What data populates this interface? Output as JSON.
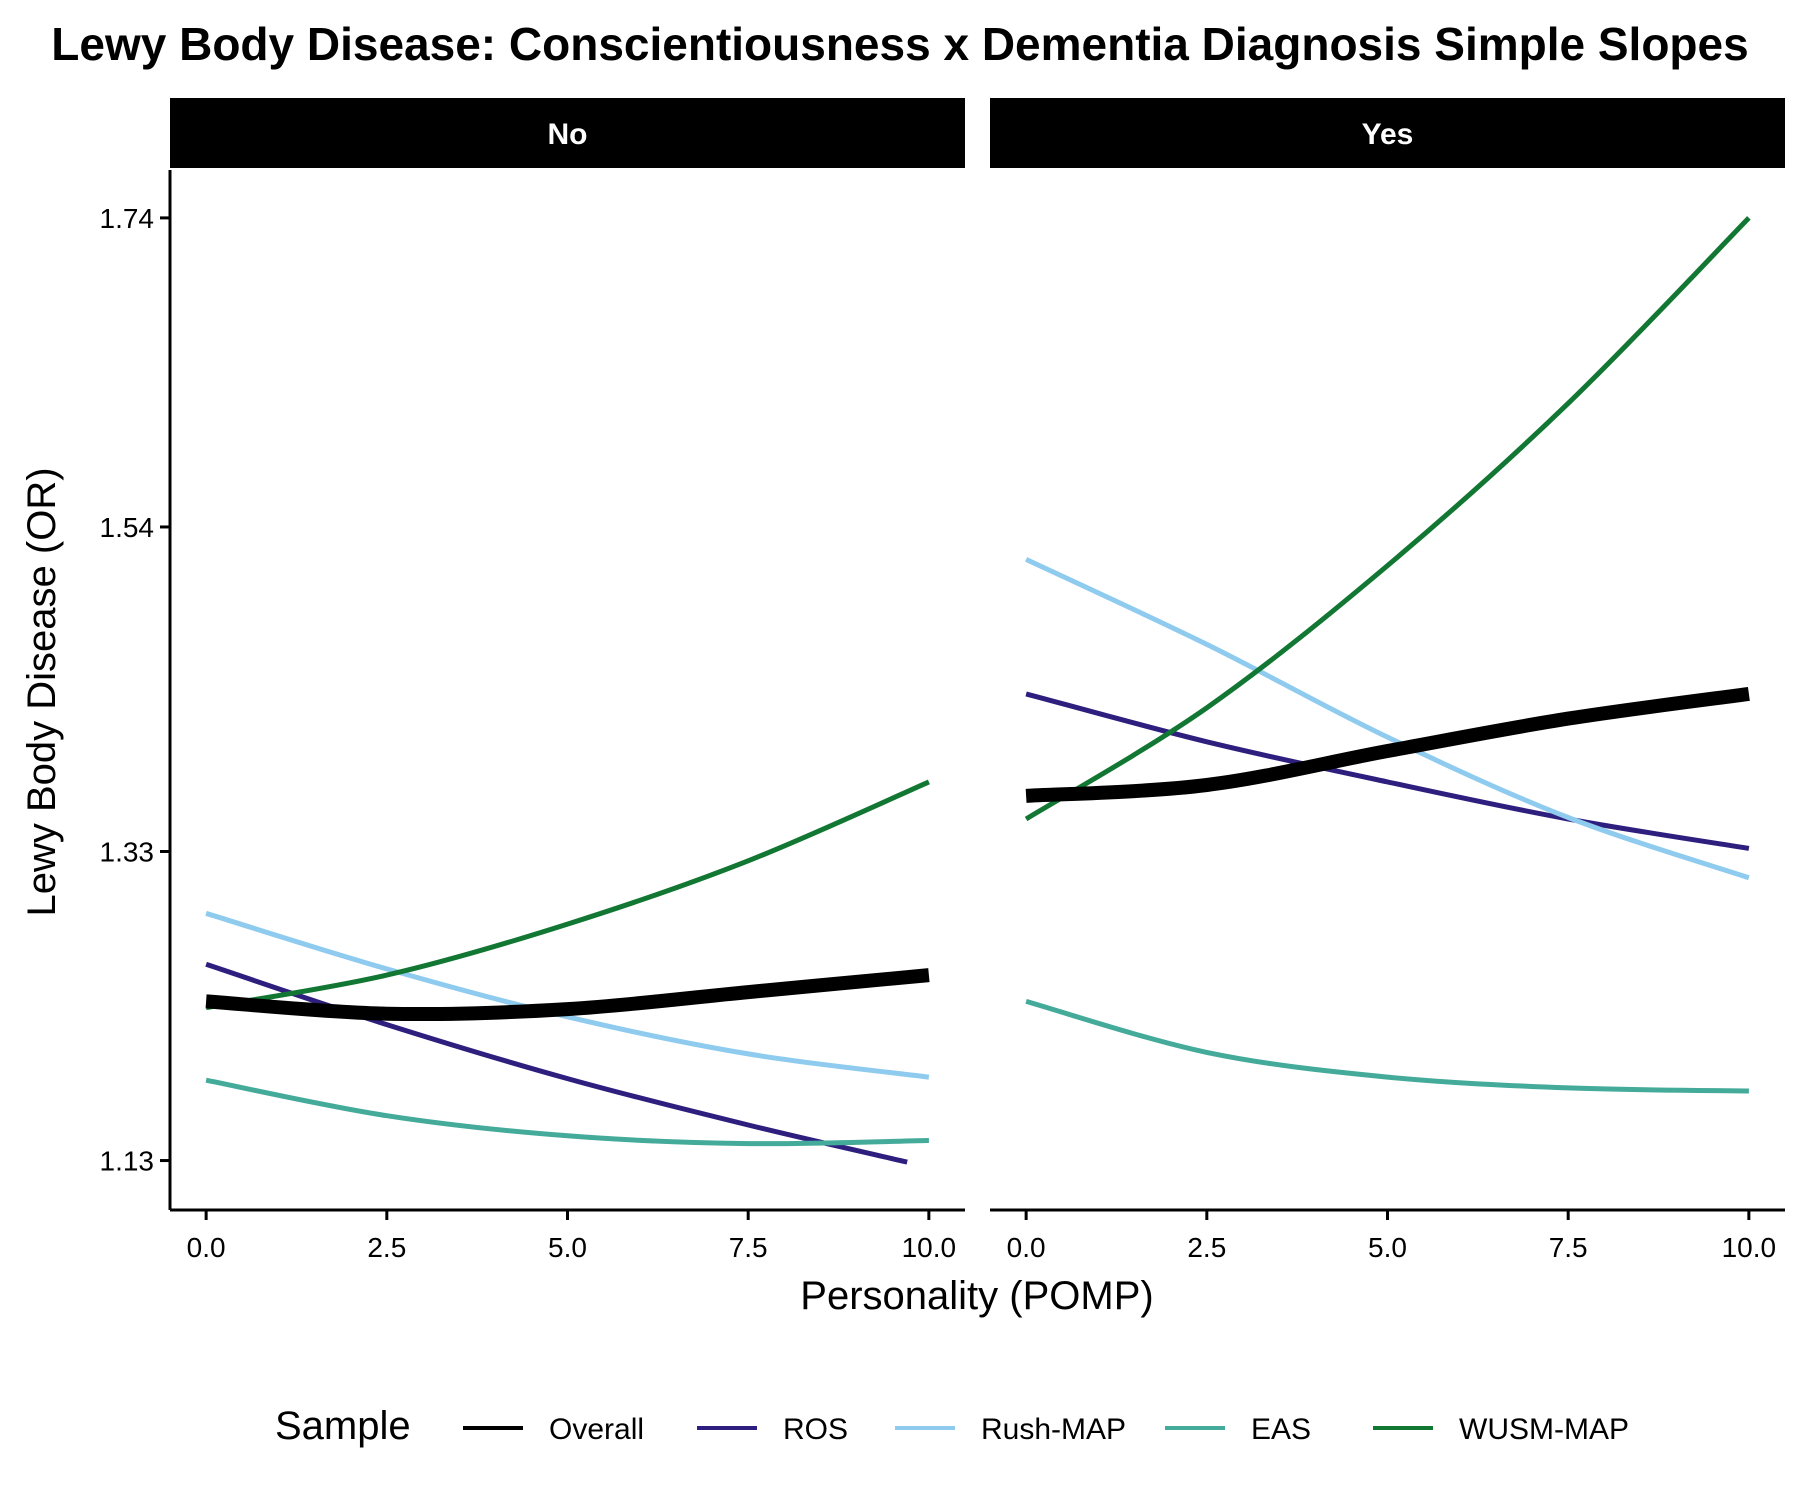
{
  "chart_data": {
    "type": "line",
    "title": "Lewy Body Disease: Conscientiousness x Dementia Diagnosis Simple Slopes",
    "xlabel": "Personality (POMP)",
    "ylabel": "Lewy Body Disease (OR)",
    "xlim": [
      -0.5,
      10.5
    ],
    "ylim": [
      1.098,
      1.771
    ],
    "x_ticks": [
      0,
      2.5,
      5,
      7.5,
      10
    ],
    "x_tick_labels": [
      "0.0",
      "2.5",
      "5.0",
      "7.5",
      "10.0"
    ],
    "y_ticks": [
      1.13,
      1.33,
      1.54,
      1.74
    ],
    "y_tick_labels": [
      "1.13",
      "1.33",
      "1.54",
      "1.74"
    ],
    "grid": false,
    "legend": {
      "title": "Sample",
      "position": "bottom",
      "entries": [
        "Overall",
        "ROS",
        "Rush-MAP",
        "EAS",
        "WUSM-MAP"
      ]
    },
    "colors": {
      "Overall": "#000000",
      "ROS": "#2e1f7f",
      "Rush-MAP": "#8ecbee",
      "EAS": "#44aa99",
      "WUSM-MAP": "#117733"
    },
    "panels": [
      {
        "label": "No",
        "series": [
          {
            "name": "Overall",
            "x": [
              0,
              2.5,
              5,
              7.5,
              10
            ],
            "y": [
              1.233,
              1.225,
              1.228,
              1.239,
              1.25
            ]
          },
          {
            "name": "ROS",
            "x": [
              0,
              2.5,
              5,
              7.5,
              9.7
            ],
            "y": [
              1.257,
              1.218,
              1.183,
              1.153,
              1.129
            ]
          },
          {
            "name": "Rush-MAP",
            "x": [
              0,
              2.5,
              5,
              7.5,
              10
            ],
            "y": [
              1.29,
              1.254,
              1.223,
              1.199,
              1.184
            ]
          },
          {
            "name": "EAS",
            "x": [
              0,
              2.5,
              5,
              7.5,
              10
            ],
            "y": [
              1.182,
              1.159,
              1.146,
              1.141,
              1.143
            ]
          },
          {
            "name": "WUSM-MAP",
            "x": [
              0,
              2.5,
              5,
              7.5,
              10
            ],
            "y": [
              1.229,
              1.25,
              1.283,
              1.324,
              1.375
            ]
          }
        ]
      },
      {
        "label": "Yes",
        "series": [
          {
            "name": "Overall",
            "x": [
              0,
              2.5,
              5,
              7.5,
              10
            ],
            "y": [
              1.366,
              1.373,
              1.395,
              1.416,
              1.432
            ]
          },
          {
            "name": "ROS",
            "x": [
              0,
              2.5,
              5,
              7.5,
              10
            ],
            "y": [
              1.432,
              1.401,
              1.375,
              1.351,
              1.332
            ]
          },
          {
            "name": "Rush-MAP",
            "x": [
              0,
              2.5,
              5,
              7.5,
              10
            ],
            "y": [
              1.519,
              1.464,
              1.404,
              1.352,
              1.313
            ]
          },
          {
            "name": "EAS",
            "x": [
              0,
              2.5,
              5,
              7.5,
              10
            ],
            "y": [
              1.233,
              1.2,
              1.184,
              1.177,
              1.175
            ]
          },
          {
            "name": "WUSM-MAP",
            "x": [
              0,
              2.5,
              5,
              7.5,
              10
            ],
            "y": [
              1.351,
              1.423,
              1.515,
              1.62,
              1.74
            ]
          }
        ]
      }
    ]
  }
}
